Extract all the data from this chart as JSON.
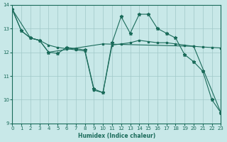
{
  "xlabel": "Humidex (Indice chaleur)",
  "ylabel": "",
  "bg_color": "#c8e8e8",
  "grid_color": "#a0c8c8",
  "line_color": "#1a6b5a",
  "xlim": [
    0,
    23
  ],
  "ylim": [
    9,
    14
  ],
  "xticks": [
    0,
    1,
    2,
    3,
    4,
    5,
    6,
    7,
    8,
    9,
    10,
    11,
    12,
    13,
    14,
    15,
    16,
    17,
    18,
    19,
    20,
    21,
    22,
    23
  ],
  "yticks": [
    9,
    10,
    11,
    12,
    13,
    14
  ],
  "series1_x": [
    0,
    1,
    2,
    3,
    4,
    5,
    6,
    7,
    8,
    9,
    10,
    11,
    12,
    13,
    14,
    15,
    16,
    17,
    18,
    19,
    20,
    21,
    22,
    23
  ],
  "series1_y": [
    13.8,
    12.9,
    12.6,
    12.5,
    12.3,
    12.2,
    12.15,
    12.1,
    12.05,
    10.4,
    10.3,
    12.3,
    12.35,
    12.4,
    12.5,
    12.45,
    12.4,
    12.4,
    12.35,
    12.3,
    12.25,
    12.22,
    12.2,
    12.18
  ],
  "series2_x": [
    0,
    1,
    2,
    3,
    4,
    5,
    6,
    7,
    8,
    9,
    10,
    11,
    12,
    13,
    14,
    15,
    16,
    17,
    18,
    19,
    20,
    21,
    22,
    23
  ],
  "series2_y": [
    13.8,
    12.9,
    12.6,
    12.5,
    12.0,
    11.95,
    12.2,
    12.15,
    12.1,
    10.45,
    10.3,
    12.4,
    13.5,
    12.8,
    13.6,
    13.6,
    13.0,
    12.8,
    12.6,
    11.9,
    11.6,
    11.2,
    10.0,
    9.45
  ],
  "series3_x": [
    0,
    2,
    3,
    4,
    10,
    20,
    23
  ],
  "series3_y": [
    13.8,
    12.6,
    12.5,
    12.0,
    12.35,
    12.25,
    9.45
  ]
}
